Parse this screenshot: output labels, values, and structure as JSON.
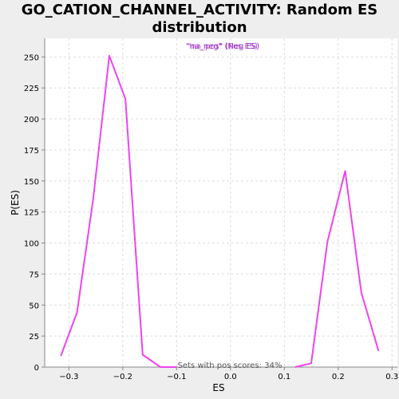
{
  "chart_data": {
    "type": "line",
    "title": "GO_CATION_CHANNEL_ACTIVITY: Random ES distribution",
    "xlabel": "ES",
    "ylabel": "P(ES)",
    "xlim": [
      -0.345,
      0.31
    ],
    "ylim": [
      0,
      265
    ],
    "xticks": [
      -0.3,
      -0.2,
      -0.1,
      0.0,
      0.1,
      0.2,
      0.3
    ],
    "xtick_labels": [
      "−0.3",
      "−0.2",
      "−0.1",
      "0.0",
      "0.1",
      "0.2",
      "0.3"
    ],
    "yticks": [
      0,
      25,
      50,
      75,
      100,
      125,
      150,
      175,
      200,
      225,
      250
    ],
    "ytick_labels": [
      "0",
      "25",
      "50",
      "75",
      "100",
      "125",
      "150",
      "175",
      "200",
      "225",
      "250"
    ],
    "grid": true,
    "legend": {
      "placement": "top-center",
      "entries": [
        {
          "label": "\"na_pos\" (Pos ES)",
          "color": "#cc44cc"
        },
        {
          "label": "\"na_neg\" (Neg ES)",
          "color": "#8833cc"
        }
      ]
    },
    "annotation": "Sets with pos scores: 34%",
    "series": [
      {
        "name": "na_neg",
        "color": "#ee44ee",
        "x": [
          -0.315,
          -0.285,
          -0.255,
          -0.225,
          -0.195,
          -0.163,
          -0.13,
          -0.1
        ],
        "y": [
          9,
          44,
          135,
          251,
          216,
          10,
          0,
          0
        ]
      },
      {
        "name": "na_pos",
        "color": "#ee44ee",
        "x": [
          0.12,
          0.15,
          0.18,
          0.213,
          0.243,
          0.275
        ],
        "y": [
          0,
          3,
          101,
          158,
          60,
          13
        ]
      }
    ]
  }
}
